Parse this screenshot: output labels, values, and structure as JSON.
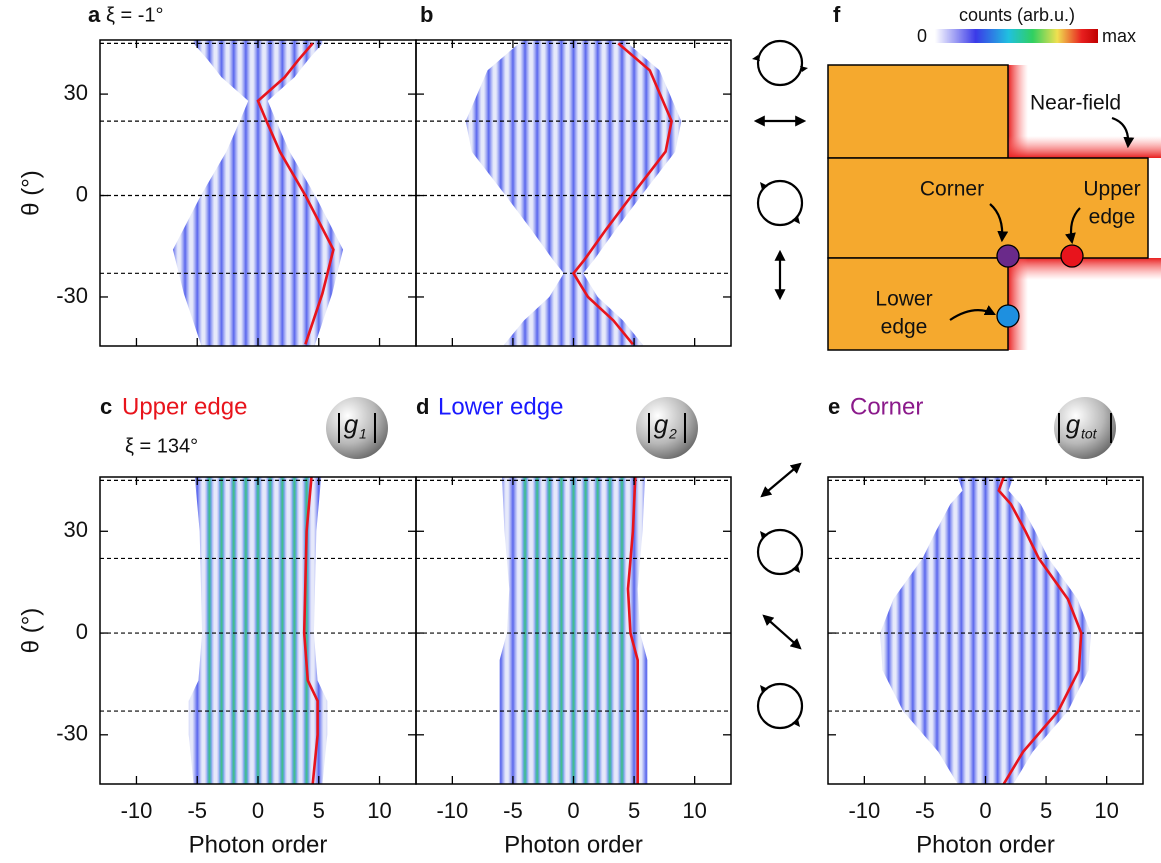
{
  "chart_data": [
    {
      "type": "line",
      "panel_label": "a",
      "subtitle": "ξ = -1°",
      "ylabel": "θ (°)",
      "color": "#e8141c",
      "x": [
        4.5,
        3.3,
        2.2,
        0,
        0.7,
        1.8,
        3.9,
        6.2,
        5.3,
        3.9
      ],
      "values": [
        45,
        40,
        35,
        28,
        22,
        13,
        0,
        -16,
        -29,
        -44
      ],
      "reference_lines": [
        45,
        22,
        0,
        -23
      ],
      "xlim": [
        -13,
        13
      ],
      "ylim": [
        -44.5,
        46
      ],
      "xticks": [
        -10,
        -5,
        0,
        5,
        10
      ],
      "yticks": [
        -30,
        0,
        30
      ]
    },
    {
      "type": "line",
      "panel_label": "b",
      "color": "#e8141c",
      "x": [
        3.7,
        6.3,
        8.1,
        7.6,
        4.8,
        2.7,
        0.9,
        0,
        1.2,
        3.3,
        4.9
      ],
      "values": [
        45,
        37,
        22,
        13,
        0,
        -10,
        -19,
        -23,
        -30,
        -37,
        -44
      ],
      "reference_lines": [
        45,
        22,
        0,
        -23
      ],
      "xlim": [
        -13,
        13
      ],
      "ylim": [
        -44.5,
        46
      ],
      "xticks": [
        -10,
        -5,
        0,
        5,
        10
      ],
      "yticks": [
        -30,
        0,
        30
      ]
    },
    {
      "type": "line",
      "panel_label": "c",
      "title": "Upper edge",
      "title_color": "#e8141c",
      "subtitle": "ξ = 134°",
      "badge": "g",
      "badge_subscript": "1",
      "ylabel": "θ (°)",
      "xlabel": "Photon order",
      "color": "#e8141c",
      "x": [
        4.4,
        4.0,
        3.8,
        4.1,
        4.9,
        4.9,
        4.5
      ],
      "values": [
        46,
        30,
        0,
        -14,
        -20,
        -30,
        -44.5
      ],
      "reference_lines": [
        45,
        22,
        0,
        -23
      ],
      "xlim": [
        -13,
        13
      ],
      "ylim": [
        -44.5,
        46
      ],
      "xticks": [
        -10,
        -5,
        0,
        5,
        10
      ],
      "yticks": [
        -30,
        0,
        30
      ]
    },
    {
      "type": "line",
      "panel_label": "d",
      "title": "Lower edge",
      "title_color": "#1a1aff",
      "badge": "g",
      "badge_subscript": "2",
      "xlabel": "Photon order",
      "color": "#e8141c",
      "x": [
        5.1,
        4.9,
        4.5,
        4.7,
        5.3,
        5.3,
        5.3
      ],
      "values": [
        46,
        30,
        13,
        0,
        -8,
        -20,
        -44.5
      ],
      "reference_lines": [
        45,
        22,
        0,
        -23
      ],
      "xlim": [
        -13,
        13
      ],
      "ylim": [
        -44.5,
        46
      ],
      "xticks": [
        -10,
        -5,
        0,
        5,
        10
      ],
      "yticks": [
        -30,
        0,
        30
      ]
    },
    {
      "type": "line",
      "panel_label": "e",
      "title": "Corner",
      "title_color": "#8b1a8b",
      "badge": "g",
      "badge_subscript": "tot",
      "xlabel": "Photon order",
      "color": "#e8141c",
      "x": [
        1.5,
        1.1,
        2.1,
        3.3,
        4.4,
        6.8,
        7.9,
        7.7,
        6.0,
        3.1,
        1.5
      ],
      "values": [
        46,
        42,
        38,
        30,
        22,
        10,
        0,
        -11,
        -23,
        -35,
        -44.5
      ],
      "reference_lines": [
        45,
        22,
        0,
        -23
      ],
      "xlim": [
        -13,
        13
      ],
      "ylim": [
        -44.5,
        46
      ],
      "xticks": [
        -10,
        -5,
        0,
        5,
        10
      ],
      "yticks": [
        -30,
        0,
        30
      ]
    }
  ],
  "diagram": {
    "panel_label": "f",
    "colorbar_title": "counts (arb.u.)",
    "colorbar_min": "0",
    "colorbar_max": "max",
    "near_field": "Near-field",
    "corner": "Corner",
    "upper_edge": [
      "Upper",
      "edge"
    ],
    "lower_edge": [
      "Lower",
      "edge"
    ]
  }
}
